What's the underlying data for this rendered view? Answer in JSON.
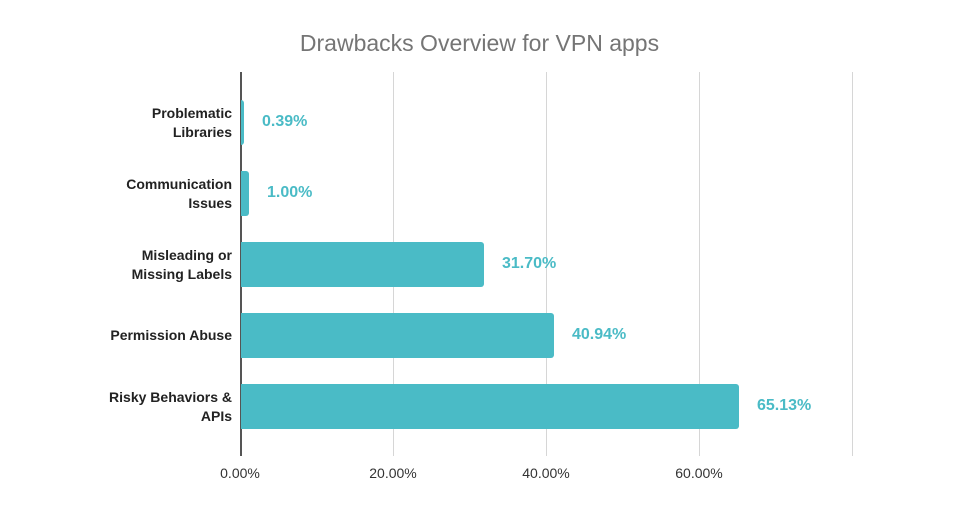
{
  "chart_data": {
    "type": "bar",
    "orientation": "horizontal",
    "title": "Drawbacks Overview for VPN apps",
    "xlabel": "",
    "ylabel": "",
    "categories": [
      "Problematic Libraries",
      "Communication Issues",
      "Misleading or Missing Labels",
      "Permission Abuse",
      "Risky Behaviors & APIs"
    ],
    "category_lines": [
      [
        "Problematic",
        "Libraries"
      ],
      [
        "Communication",
        "Issues"
      ],
      [
        "Misleading or",
        "Missing Labels"
      ],
      [
        "Permission Abuse"
      ],
      [
        "Risky Behaviors &",
        "APIs"
      ]
    ],
    "values": [
      0.39,
      1.0,
      31.7,
      40.94,
      65.13
    ],
    "value_labels": [
      "0.39%",
      "1.00%",
      "31.70%",
      "40.94%",
      "65.13%"
    ],
    "xlim": [
      0,
      80
    ],
    "xticks": [
      "0.00%",
      "20.00%",
      "40.00%",
      "60.00%"
    ],
    "gridlines": [
      0,
      20,
      40,
      60,
      80
    ],
    "grid": true,
    "legend": "none",
    "colors": {
      "bar": "#4ABBC6",
      "value_label": "#4ABBC6",
      "title": "#757575",
      "grid": "#d6d6d6",
      "axis": "#555555"
    }
  }
}
